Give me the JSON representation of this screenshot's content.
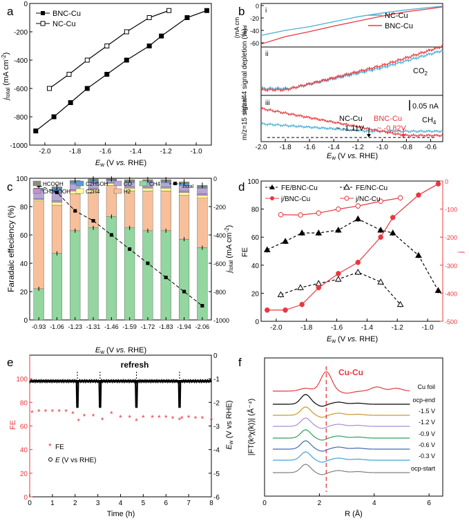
{
  "panels": {
    "a": {
      "letter": "a",
      "xlabel": {
        "pre": "E",
        "sub": "w",
        "post": " (V ",
        "it": "vs.",
        "end": " RHE)"
      },
      "ylabel": {
        "pre": "j",
        "sub": "total",
        "post": " (mA cm",
        "sup": "-2",
        "end": ")"
      },
      "xticks": [
        "-2.0",
        "-1.8",
        "-1.6",
        "-1.4",
        "-1.2",
        "-1.0"
      ],
      "yticks": [
        "0",
        "-200",
        "-400",
        "-600",
        "-800",
        "-1000"
      ],
      "legend": [
        "BNC-Cu",
        "NC-Cu"
      ]
    },
    "b": {
      "letter": "b",
      "sub_i": "i",
      "sub_ii": "ii",
      "sub_iii": "iii",
      "legend": [
        "NC-Cu",
        "BNC-Cu"
      ],
      "yticks_i": [
        "0",
        "-20",
        "-40",
        "-60"
      ],
      "ylabel_i": {
        "pre": "j",
        "sub": "total"
      },
      "ylabel_i_unit": "(mA cm",
      "ylabel_ii": "m/z=44 signal depletion (%)",
      "ylabel_iii": "m/z=15 signal",
      "co2_label": "CO",
      "co2_sub": "2",
      "ch4_label": "CH",
      "ch4_sub": "4",
      "scale_label": "0.05 nA",
      "nc_onset": [
        "NC-Cu",
        "~ -1.11V"
      ],
      "bnc_onset": [
        "BNC-Cu",
        "~ -0.82V"
      ],
      "xticks": [
        "-2.0",
        "-1.8",
        "-1.6",
        "-1.4",
        "-1.2",
        "-1.0",
        "-0.8",
        "-0.6"
      ],
      "xlabel": {
        "pre": "E",
        "sub": "w",
        "post": " (V ",
        "it": "vs.",
        "end": " RHE)"
      }
    },
    "c": {
      "letter": "c",
      "legend": [
        "HCOOH",
        "C2H5OH",
        "CO",
        "CH4",
        "CH3COOH",
        "C2H4",
        "H2"
      ],
      "legend_jtotal": "j",
      "legend_jtotal_sub": "total",
      "ylabel": "Faradaic effeciency (%)",
      "yticks_left": [
        "0",
        "20",
        "40",
        "60",
        "80",
        "100"
      ],
      "yticks_right": [
        "0",
        "-200",
        "-400",
        "-600",
        "-800",
        "-1000"
      ],
      "ylabel_right": {
        "pre": "j",
        "sub": "total",
        "post": " (mA cm",
        "sup": "-2",
        "end": ")"
      },
      "xlabel": {
        "pre": "E",
        "sub": "w",
        "post": " (V ",
        "it": "vs.",
        "end": " RHE)"
      }
    },
    "d": {
      "letter": "d",
      "legend": [
        "FE/BNC-Cu",
        "FE/NC-Cu",
        "j/BNC-Cu",
        "j/NC-Cu"
      ],
      "xticks": [
        "-2.0",
        "-1.8",
        "-1.6",
        "-1.4",
        "-1.2",
        "-1.0"
      ],
      "yticks_left": [
        "0",
        "20",
        "40",
        "60",
        "80",
        "100"
      ],
      "yticks_right": [
        "0",
        "-100",
        "-200",
        "-300",
        "-400",
        "-500"
      ],
      "ylabel_left": "FE",
      "ylabel_right": "j",
      "xlabel": {
        "pre": "E",
        "sub": "w",
        "post": " (V ",
        "it": "vs.",
        "end": " RHE)"
      }
    },
    "e": {
      "letter": "e",
      "refresh": "refresh",
      "xticks": [
        "0",
        "1",
        "2",
        "3",
        "4",
        "5",
        "6",
        "7",
        "8"
      ],
      "yticks_left": [
        "0",
        "20",
        "40",
        "60",
        "80",
        "100"
      ],
      "yticks_right": [
        "0",
        "-1",
        "-2",
        "-3",
        "-4",
        "-5",
        "-6"
      ],
      "xlabel": "Time (h)",
      "ylabel_left": "FE",
      "ylabel_right": {
        "pre": "E",
        "sub": "w",
        "post": " (V vs RHE)"
      },
      "legend_fe": "FE",
      "legend_ew": "E",
      "legend_ew_post": " (V vs RHE)"
    },
    "f": {
      "letter": "f",
      "cucu": "Cu-Cu",
      "labels": [
        "Cu foil",
        "ocp-end",
        "-1.5 V",
        "-1.2 V",
        "-0.9 V",
        "-0.6 V",
        "-0.3 V",
        "ocp-start"
      ],
      "xticks": [
        "0",
        "2",
        "4",
        "6"
      ],
      "xlabel": "R (Å)",
      "ylabel": "|FT(k³χ(k))| (Å⁻⁴)"
    }
  },
  "colors": {
    "red": "#e8383d",
    "blue": "#4ab0d4",
    "hcooh": "#8d8f7a",
    "c2h5oh": "#5b9bd5",
    "co": "#b4a7d6",
    "ch4": "#93d6a0",
    "ch3cooh": "#c98fd1",
    "c2h4": "#ffff99",
    "h2": "#f7c09a",
    "f_curves": [
      "#e8383d",
      "#000000",
      "#c9972a",
      "#a78bd1",
      "#2ca05a",
      "#3c6ab0",
      "#3aa4d4",
      "#7f7f7f"
    ]
  },
  "chart_data": [
    {
      "panel": "a",
      "type": "line",
      "xlabel": "Ew (V vs. RHE)",
      "ylabel": "jtotal (mA cm-2)",
      "xlim": [
        -2.1,
        -0.9
      ],
      "ylim": [
        -1000,
        0
      ],
      "series": [
        {
          "name": "BNC-Cu",
          "x": [
            -2.06,
            -1.94,
            -1.83,
            -1.72,
            -1.59,
            -1.46,
            -1.31,
            -1.23,
            -1.06,
            -0.93
          ],
          "y": [
            -900,
            -800,
            -700,
            -600,
            -500,
            -400,
            -300,
            -230,
            -100,
            -50
          ]
        },
        {
          "name": "NC-Cu",
          "x": [
            -1.97,
            -1.84,
            -1.72,
            -1.59,
            -1.46,
            -1.31,
            -1.18
          ],
          "y": [
            -600,
            -500,
            -400,
            -300,
            -200,
            -100,
            -50
          ]
        }
      ]
    },
    {
      "panel": "b",
      "type": "line",
      "xlabel": "Ew (V vs. RHE)",
      "xlim": [
        -2.0,
        -0.5
      ],
      "series": [
        {
          "name": "NC-Cu",
          "sub": "i",
          "x": [
            -2.0,
            -1.8,
            -1.6,
            -1.4,
            -1.2,
            -1.0,
            -0.8,
            -0.6,
            -0.5
          ],
          "y": [
            -48,
            -40,
            -34,
            -26,
            -18,
            -12,
            -7,
            -3,
            -1
          ]
        },
        {
          "name": "BNC-Cu",
          "sub": "i",
          "x": [
            -2.0,
            -1.8,
            -1.6,
            -1.4,
            -1.2,
            -1.0,
            -0.8,
            -0.6,
            -0.5
          ],
          "y": [
            -62,
            -50,
            -42,
            -33,
            -25,
            -17,
            -10,
            -5,
            -2
          ]
        }
      ]
    },
    {
      "panel": "c",
      "type": "bar",
      "categories": [
        "-0.93",
        "-1.06",
        "-1.23",
        "-1.31",
        "-1.46",
        "-1.59",
        "-1.72",
        "-1.83",
        "-1.94",
        "-2.06"
      ],
      "ylim": [
        0,
        100
      ],
      "series": [
        {
          "name": "CH4",
          "values": [
            22,
            47,
            63,
            65,
            73,
            65,
            63,
            63,
            57,
            51
          ]
        },
        {
          "name": "H2",
          "values": [
            62,
            34,
            26,
            25,
            22,
            26,
            28,
            28,
            31,
            35
          ]
        },
        {
          "name": "C2H4",
          "values": [
            1,
            2,
            2,
            2,
            1.5,
            2,
            2,
            2,
            2,
            2
          ]
        },
        {
          "name": "CH3COOH",
          "values": [
            0.5,
            1,
            1,
            1,
            0.5,
            1,
            1,
            1,
            1,
            1
          ]
        },
        {
          "name": "CO",
          "values": [
            6,
            7,
            4,
            4,
            1.5,
            3,
            3,
            3,
            4,
            4
          ]
        },
        {
          "name": "C2H5OH",
          "values": [
            1,
            2,
            1.5,
            1.5,
            0.5,
            1,
            1,
            1,
            1.5,
            1
          ]
        },
        {
          "name": "HCOOH",
          "values": [
            0.5,
            1,
            1,
            1,
            0.5,
            1,
            1,
            1,
            1,
            1
          ]
        }
      ],
      "jtotal": [
        -50,
        -100,
        -230,
        -300,
        -400,
        -500,
        -600,
        -700,
        -800,
        -900
      ]
    },
    {
      "panel": "d",
      "type": "line",
      "xlim": [
        -2.1,
        -0.9
      ],
      "series": [
        {
          "name": "FE/BNC-Cu",
          "x": [
            -2.06,
            -1.94,
            -1.83,
            -1.72,
            -1.59,
            -1.46,
            -1.31,
            -1.23,
            -1.06,
            -0.93
          ],
          "y": [
            51,
            57,
            63,
            63,
            65,
            73,
            65,
            63,
            47,
            22
          ]
        },
        {
          "name": "FE/NC-Cu",
          "x": [
            -1.97,
            -1.84,
            -1.72,
            -1.59,
            -1.46,
            -1.31,
            -1.18
          ],
          "y": [
            19,
            24,
            27,
            30,
            35,
            28,
            12
          ]
        },
        {
          "name": "j/BNC-Cu",
          "x": [
            -2.06,
            -1.94,
            -1.83,
            -1.72,
            -1.59,
            -1.46,
            -1.31,
            -1.23,
            -1.06,
            -0.93
          ],
          "y": [
            -460,
            -460,
            -440,
            -380,
            -330,
            -290,
            -200,
            -130,
            -50,
            -10
          ]
        },
        {
          "name": "j/NC-Cu",
          "x": [
            -1.97,
            -1.84,
            -1.72,
            -1.59,
            -1.46,
            -1.31,
            -1.18
          ],
          "y": [
            -120,
            -121,
            -114,
            -100,
            -89,
            -72,
            -60
          ]
        }
      ]
    },
    {
      "panel": "e",
      "type": "scatter",
      "fe": {
        "x": [
          0.1,
          0.4,
          0.7,
          1.0,
          1.3,
          1.6,
          1.9,
          2.15,
          2.4,
          2.8,
          3.2,
          3.6,
          4.0,
          4.4,
          4.7,
          5.0,
          5.4,
          5.7,
          6.0,
          6.3,
          6.6,
          6.7,
          7.0,
          7.3,
          7.6,
          8.0
        ],
        "y": [
          72,
          73,
          73,
          73,
          73,
          73,
          71,
          65,
          69,
          69,
          66,
          71,
          68,
          68,
          65,
          68,
          68,
          68,
          68,
          67,
          66,
          67,
          68,
          67,
          67,
          66
        ]
      },
      "ew_baseline": -1.1,
      "refresh_times": [
        2.1,
        3.1,
        4.7,
        6.6
      ]
    },
    {
      "panel": "f",
      "type": "line",
      "xlim": [
        0,
        6.5
      ],
      "peak_line_x": 2.25
    }
  ]
}
